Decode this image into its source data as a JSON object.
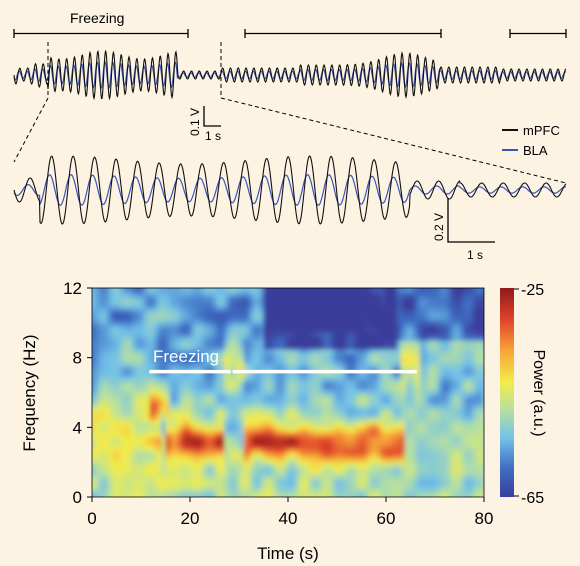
{
  "top_panel": {
    "freezing_label": "Freezing",
    "scalebar_v": "0.1 V",
    "scalebar_t": "1 s",
    "legend": [
      {
        "name": "mPFC",
        "color": "#111111"
      },
      {
        "name": "BLA",
        "color": "#3a55b8"
      }
    ]
  },
  "middle_panel": {
    "scalebar_v": "0.2 V",
    "scalebar_t": "1 s"
  },
  "colors": {
    "background": "#fdf3e3",
    "mpfc": "#111111",
    "bla": "#3a55b8",
    "freezing_bar": "#ffffff"
  },
  "chart_data": {
    "type": "heatmap",
    "title": "",
    "xlabel": "Time (s)",
    "ylabel": "Frequency (Hz)",
    "xlim": [
      0,
      80
    ],
    "ylim": [
      0,
      12
    ],
    "x_ticks": [
      "0",
      "20",
      "40",
      "60",
      "80"
    ],
    "y_ticks": [
      "0",
      "4",
      "8",
      "12"
    ],
    "colorbar": {
      "label": "Power (a.u.)",
      "max_label": "-25",
      "min_label": "-65",
      "range": [
        -65,
        -25
      ],
      "stops": [
        "#3b3d9a",
        "#3f6fc4",
        "#73c1e8",
        "#b7e0a0",
        "#f3ec4a",
        "#f7a43a",
        "#e0432a",
        "#8e1a1a"
      ]
    },
    "freezing_annotation": {
      "label": "Freezing",
      "segments": [
        [
          12,
          28
        ],
        [
          29,
          66
        ]
      ],
      "frequency_hz": 7.2
    },
    "high_power_band": {
      "frequency_hz": 3.2,
      "time_segments": [
        [
          15,
          27
        ],
        [
          31,
          64
        ]
      ]
    }
  }
}
